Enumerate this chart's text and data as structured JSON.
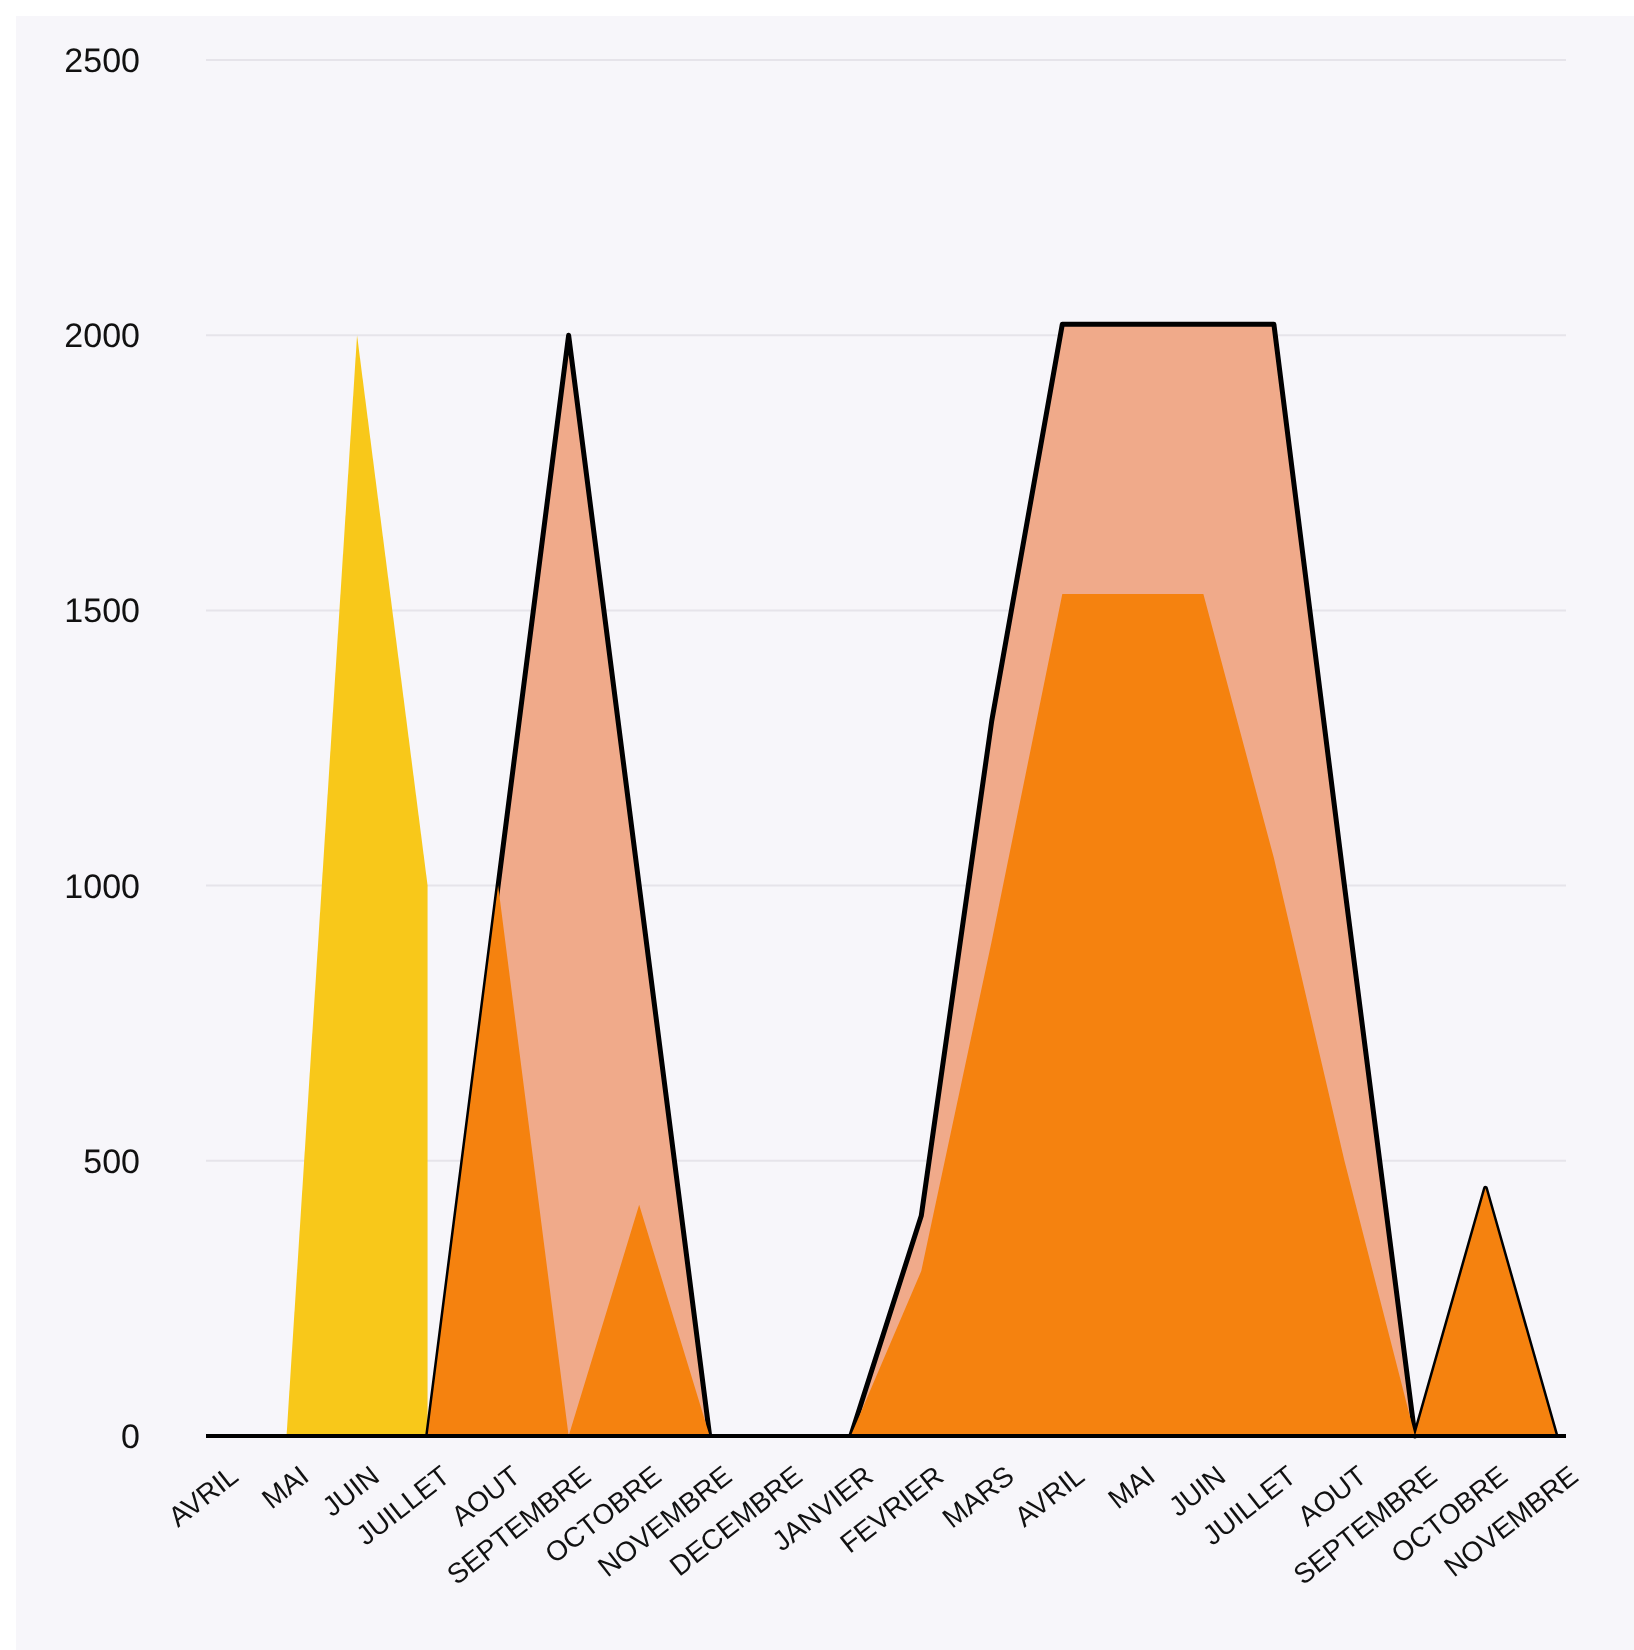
{
  "chart_data": {
    "type": "area",
    "categories": [
      "AVRIL",
      "MAI",
      "JUIN",
      "JUILLET",
      "AOUT",
      "SEPTEMBRE",
      "OCTOBRE",
      "NOVEMBRE",
      "DECEMBRE",
      "JANVIER",
      "FEVRIER",
      "MARS",
      "AVRIL",
      "MAI",
      "JUIN",
      "JUILLET",
      "AOUT",
      "SEPTEMBRE",
      "OCTOBRE",
      "NOVEMBRE"
    ],
    "series": [
      {
        "color": "#f8c81a",
        "values": [
          null,
          0,
          2000,
          1000,
          null,
          null,
          null,
          null,
          null,
          null,
          null,
          null,
          null,
          null,
          null,
          null,
          null,
          null,
          null,
          null
        ]
      },
      {
        "color": "#f0aa8a",
        "line_style": "solid",
        "values": [
          null,
          null,
          null,
          0,
          1000,
          2000,
          1000,
          0,
          null,
          0,
          400,
          1300,
          2020,
          2020,
          2020,
          2020,
          1000,
          0,
          450,
          0
        ]
      },
      {
        "color": "#f5820f",
        "values": [
          null,
          null,
          null,
          0,
          1000,
          0,
          420,
          0,
          null,
          0,
          300,
          900,
          1530,
          1530,
          1530,
          1050,
          500,
          0,
          450,
          0
        ]
      }
    ],
    "ylim": [
      0,
      2500
    ],
    "yticks": [
      0,
      500,
      1000,
      1500,
      2000,
      2500
    ],
    "grid": "y"
  }
}
